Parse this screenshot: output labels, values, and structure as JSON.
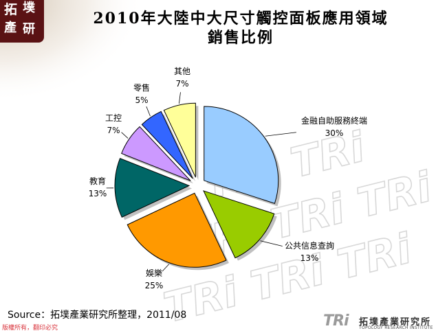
{
  "header": {
    "logo_chars": [
      "拓",
      "墣",
      "產",
      "研"
    ],
    "title_line1": "2010年大陸中大尺寸觸控面板應用領域",
    "title_line2": "銷售比例"
  },
  "footer": {
    "source": "Source：拓墣產業研究所整理，2011/08",
    "copyright": "版權所有，翻印必究",
    "logo_mark": "TRi",
    "logo_name": "拓墣產業研究所",
    "logo_tagline": "TOPOLOGY RESEARCH INSTITUTE"
  },
  "watermark": {
    "text": "TRi"
  },
  "chart_data": {
    "type": "pie",
    "title": "2010年大陸中大尺寸觸控面板應用領域銷售比例",
    "slices": [
      {
        "label": "金融自助服務終端",
        "value": 30,
        "value_label": "30%",
        "color": "#99ccff"
      },
      {
        "label": "公共信息查詢",
        "value": 13,
        "value_label": "13%",
        "color": "#99cc00"
      },
      {
        "label": "娛樂",
        "value": 25,
        "value_label": "25%",
        "color": "#ff9900"
      },
      {
        "label": "教育",
        "value": 13,
        "value_label": "13%",
        "color": "#006666"
      },
      {
        "label": "工控",
        "value": 7,
        "value_label": "7%",
        "color": "#cc99ff"
      },
      {
        "label": "零售",
        "value": 5,
        "value_label": "5%",
        "color": "#3366ff"
      },
      {
        "label": "其他",
        "value": 7,
        "value_label": "7%",
        "color": "#ffff99"
      }
    ],
    "start_angle_deg": 0,
    "direction": "clockwise",
    "exploded": true,
    "legend": "none"
  }
}
